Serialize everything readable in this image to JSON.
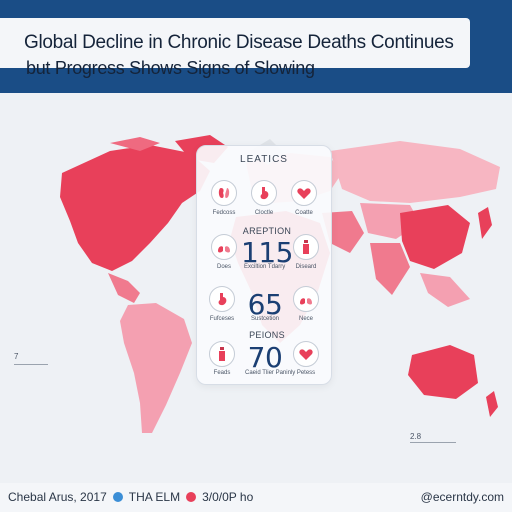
{
  "header": {
    "title": "Global Decline in Chronic Disease Deaths Continues",
    "subtitle": "but Progress Shows Signs of Slowing"
  },
  "panel": {
    "title": "LEATICS",
    "row1": [
      "Fedcoss",
      "Cloctle",
      "Coatte"
    ],
    "section2": "AREPTION",
    "value2": "115",
    "row2": [
      "Does",
      "Exciltion Tdarry",
      "Diseard"
    ],
    "value3": "65",
    "row3": [
      "Fufceses",
      "Sustcetion",
      "Nece"
    ],
    "section4": "PEIONS",
    "value4": "70",
    "row4": [
      "Feads",
      "Caeid Tlier Paninly",
      "Petess"
    ]
  },
  "markers": {
    "left": "7",
    "right": "2.8"
  },
  "footer": {
    "left_text": "Chebal Arus, 2017",
    "legend1": "THA ELM",
    "legend2": "3/0/0P ho",
    "right_text": "@ecerntdy.com"
  },
  "colors": {
    "banner": "#1a4d86",
    "map_dark": "#e8405a",
    "map_mid": "#f07a8e",
    "map_light": "#f7b6c2",
    "map_grey": "#dfe3e8",
    "accent_blue": "#1b3f73",
    "legend_blue": "#3b8ed6",
    "legend_red": "#e8405a"
  },
  "icons": [
    "kidney-icon",
    "stomach-icon",
    "heart-icon",
    "lungs-icon",
    "bottle-icon"
  ]
}
